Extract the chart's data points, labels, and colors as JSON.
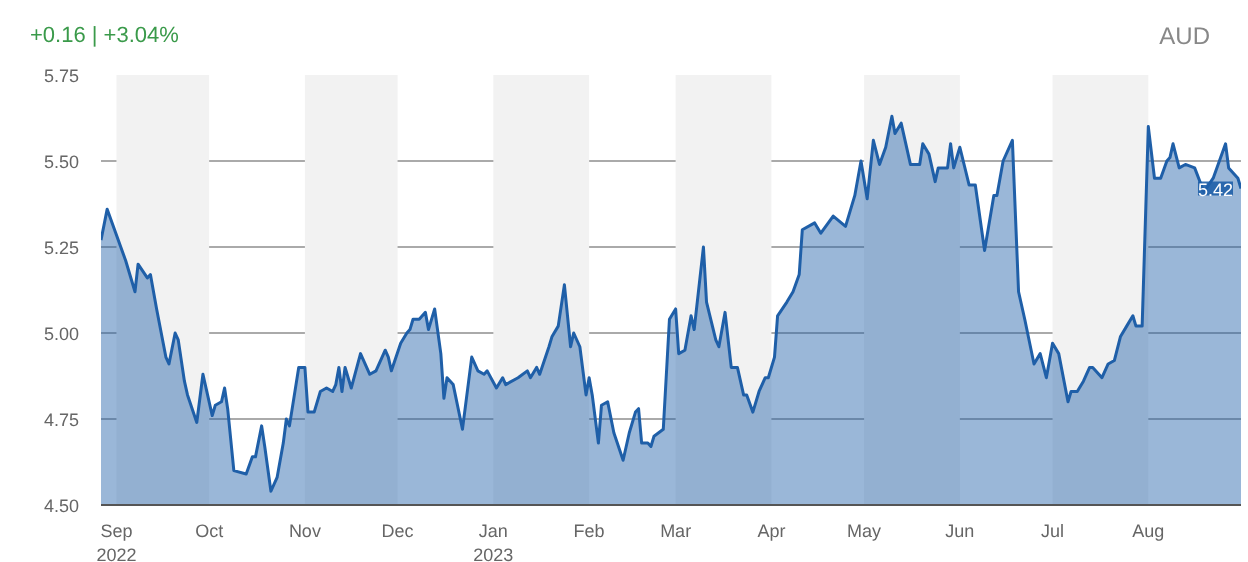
{
  "chart_data": {
    "type": "area",
    "annotations": [
      "+0.16 | +3.04%",
      "AUD",
      {
        "text": "5.42",
        "x": "2023-08-31",
        "y": 5.42
      }
    ],
    "x": [
      "2022-08-27",
      "2022-08-29",
      "2022-09-04",
      "2022-09-07",
      "2022-09-08",
      "2022-09-11",
      "2022-09-12",
      "2022-09-14",
      "2022-09-17",
      "2022-09-18",
      "2022-09-20",
      "2022-09-21",
      "2022-09-23",
      "2022-09-24",
      "2022-09-27",
      "2022-09-29",
      "2022-10-02",
      "2022-10-03",
      "2022-10-05",
      "2022-10-06",
      "2022-10-07",
      "2022-10-09",
      "2022-10-13",
      "2022-10-15",
      "2022-10-16",
      "2022-10-18",
      "2022-10-19",
      "2022-10-21",
      "2022-10-23",
      "2022-10-25",
      "2022-10-26",
      "2022-10-27",
      "2022-10-30",
      "2022-11-01",
      "2022-11-02",
      "2022-11-04",
      "2022-11-06",
      "2022-11-08",
      "2022-11-10",
      "2022-11-11",
      "2022-11-12",
      "2022-11-13",
      "2022-11-14",
      "2022-11-16",
      "2022-11-19",
      "2022-11-22",
      "2022-11-24",
      "2022-11-27",
      "2022-11-28",
      "2022-11-29",
      "2022-12-02",
      "2022-12-04",
      "2022-12-05",
      "2022-12-06",
      "2022-12-08",
      "2022-12-10",
      "2022-12-11",
      "2022-12-13",
      "2022-12-15",
      "2022-12-16",
      "2022-12-17",
      "2022-12-19",
      "2022-12-22",
      "2022-12-25",
      "2022-12-27",
      "2022-12-29",
      "2022-12-30",
      "2023-01-02",
      "2023-01-04",
      "2023-01-05",
      "2023-01-09",
      "2023-01-12",
      "2023-01-13",
      "2023-01-15",
      "2023-01-16",
      "2023-01-19",
      "2023-01-20",
      "2023-01-22",
      "2023-01-24",
      "2023-01-26",
      "2023-01-27",
      "2023-01-29",
      "2023-01-31",
      "2023-02-01",
      "2023-02-02",
      "2023-02-04",
      "2023-02-05",
      "2023-02-07",
      "2023-02-09",
      "2023-02-12",
      "2023-02-14",
      "2023-02-16",
      "2023-02-17",
      "2023-02-18",
      "2023-02-20",
      "2023-02-21",
      "2023-02-22",
      "2023-02-25",
      "2023-02-27",
      "2023-03-01",
      "2023-03-02",
      "2023-03-04",
      "2023-03-06",
      "2023-03-07",
      "2023-03-10",
      "2023-03-11",
      "2023-03-14",
      "2023-03-15",
      "2023-03-17",
      "2023-03-19",
      "2023-03-21",
      "2023-03-23",
      "2023-03-24",
      "2023-03-26",
      "2023-03-28",
      "2023-03-30",
      "2023-03-31",
      "2023-04-02",
      "2023-04-03",
      "2023-04-06",
      "2023-04-08",
      "2023-04-10",
      "2023-04-11",
      "2023-04-15",
      "2023-04-17",
      "2023-04-21",
      "2023-04-25",
      "2023-04-28",
      "2023-04-30",
      "2023-05-02",
      "2023-05-04",
      "2023-05-06",
      "2023-05-08",
      "2023-05-10",
      "2023-05-11",
      "2023-05-13",
      "2023-05-16",
      "2023-05-19",
      "2023-05-20",
      "2023-05-22",
      "2023-05-24",
      "2023-05-25",
      "2023-05-28",
      "2023-05-29",
      "2023-05-30",
      "2023-06-01",
      "2023-06-04",
      "2023-06-06",
      "2023-06-09",
      "2023-06-12",
      "2023-06-13",
      "2023-06-15",
      "2023-06-18",
      "2023-06-20",
      "2023-06-22",
      "2023-06-25",
      "2023-06-27",
      "2023-06-29",
      "2023-07-01",
      "2023-07-03",
      "2023-07-06",
      "2023-07-07",
      "2023-07-09",
      "2023-07-11",
      "2023-07-13",
      "2023-07-14",
      "2023-07-17",
      "2023-07-19",
      "2023-07-21",
      "2023-07-23",
      "2023-07-25",
      "2023-07-27",
      "2023-07-28",
      "2023-07-30",
      "2023-08-01",
      "2023-08-03",
      "2023-08-05",
      "2023-08-07",
      "2023-08-08",
      "2023-08-09",
      "2023-08-11",
      "2023-08-13",
      "2023-08-16",
      "2023-08-19",
      "2023-08-22",
      "2023-08-26",
      "2023-08-27",
      "2023-08-30",
      "2023-08-31"
    ],
    "series": [
      {
        "color": "#1f5fa8",
        "values": [
          5.27,
          5.36,
          5.21,
          5.12,
          5.2,
          5.16,
          5.17,
          5.07,
          4.93,
          4.91,
          5.0,
          4.98,
          4.86,
          4.82,
          4.74,
          4.88,
          4.76,
          4.79,
          4.8,
          4.84,
          4.78,
          4.6,
          4.59,
          4.64,
          4.64,
          4.73,
          4.67,
          4.54,
          4.58,
          4.68,
          4.75,
          4.73,
          4.9,
          4.9,
          4.77,
          4.77,
          4.83,
          4.84,
          4.83,
          4.85,
          4.9,
          4.83,
          4.9,
          4.84,
          4.94,
          4.88,
          4.89,
          4.95,
          4.93,
          4.89,
          4.97,
          5.0,
          5.01,
          5.04,
          5.04,
          5.06,
          5.01,
          5.07,
          4.94,
          4.81,
          4.87,
          4.85,
          4.72,
          4.93,
          4.89,
          4.88,
          4.89,
          4.84,
          4.87,
          4.85,
          4.87,
          4.89,
          4.87,
          4.9,
          4.88,
          4.96,
          4.99,
          5.02,
          5.14,
          4.96,
          5.0,
          4.96,
          4.82,
          4.87,
          4.82,
          4.68,
          4.79,
          4.8,
          4.71,
          4.63,
          4.71,
          4.77,
          4.78,
          4.68,
          4.68,
          4.67,
          4.7,
          4.72,
          5.04,
          5.07,
          4.94,
          4.95,
          5.05,
          5.01,
          5.25,
          5.09,
          4.98,
          4.96,
          5.06,
          4.9,
          4.9,
          4.82,
          4.82,
          4.77,
          4.83,
          4.87,
          4.87,
          4.93,
          5.05,
          5.09,
          5.12,
          5.17,
          5.3,
          5.32,
          5.29,
          5.34,
          5.31,
          5.4,
          5.5,
          5.39,
          5.56,
          5.49,
          5.54,
          5.63,
          5.58,
          5.61,
          5.49,
          5.49,
          5.55,
          5.52,
          5.44,
          5.48,
          5.48,
          5.55,
          5.48,
          5.54,
          5.43,
          5.43,
          5.24,
          5.4,
          5.4,
          5.5,
          5.56,
          5.12,
          5.04,
          4.91,
          4.94,
          4.87,
          4.97,
          4.94,
          4.8,
          4.83,
          4.83,
          4.86,
          4.9,
          4.9,
          4.87,
          4.91,
          4.92,
          4.99,
          5.02,
          5.05,
          5.02,
          5.02,
          5.6,
          5.45,
          5.45,
          5.5,
          5.51,
          5.55,
          5.48,
          5.49,
          5.48,
          5.41,
          5.45,
          5.55,
          5.48,
          5.45,
          5.42
        ]
      }
    ],
    "xlim": [
      "2022-08-27",
      "2023-08-31"
    ],
    "xticks": [
      {
        "value": "2022-09-01",
        "label": "Sep\n2022"
      },
      {
        "value": "2022-10-01",
        "label": "Oct"
      },
      {
        "value": "2022-11-01",
        "label": "Nov"
      },
      {
        "value": "2022-12-01",
        "label": "Dec"
      },
      {
        "value": "2023-01-01",
        "label": "Jan\n2023"
      },
      {
        "value": "2023-02-01",
        "label": "Feb"
      },
      {
        "value": "2023-03-01",
        "label": "Mar"
      },
      {
        "value": "2023-04-01",
        "label": "Apr"
      },
      {
        "value": "2023-05-01",
        "label": "May"
      },
      {
        "value": "2023-06-01",
        "label": "Jun"
      },
      {
        "value": "2023-07-01",
        "label": "Jul"
      },
      {
        "value": "2023-08-01",
        "label": "Aug"
      }
    ],
    "ylim": [
      4.5,
      5.75
    ],
    "yticks": [
      {
        "value": 4.5,
        "label": "4.50"
      },
      {
        "value": 4.75,
        "label": "4.75"
      },
      {
        "value": 5.0,
        "label": "5.00"
      },
      {
        "value": 5.25,
        "label": "5.25"
      },
      {
        "value": 5.5,
        "label": "5.50"
      },
      {
        "value": 5.75,
        "label": "5.75"
      }
    ],
    "grid": "y",
    "bands": [
      {
        "axis": "x",
        "from": "2022-09-01",
        "to": "2022-10-01",
        "color": "#f2f2f2"
      },
      {
        "axis": "x",
        "from": "2022-11-01",
        "to": "2022-12-01",
        "color": "#f2f2f2"
      },
      {
        "axis": "x",
        "from": "2023-01-01",
        "to": "2023-02-01",
        "color": "#f2f2f2"
      },
      {
        "axis": "x",
        "from": "2023-03-01",
        "to": "2023-04-01",
        "color": "#f2f2f2"
      },
      {
        "axis": "x",
        "from": "2023-05-01",
        "to": "2023-06-01",
        "color": "#f2f2f2"
      },
      {
        "axis": "x",
        "from": "2023-07-01",
        "to": "2023-08-01",
        "color": "#f2f2f2"
      }
    ]
  }
}
